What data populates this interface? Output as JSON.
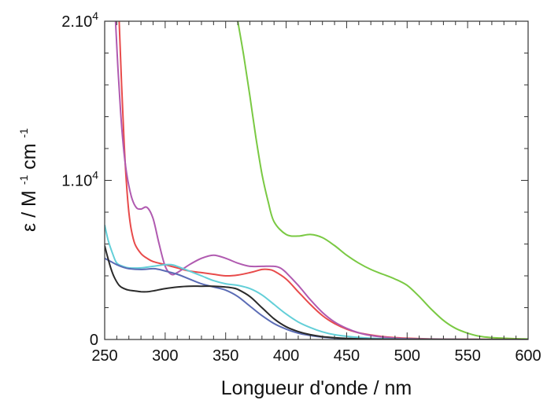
{
  "chart_data": {
    "type": "line",
    "title": "",
    "xlabel": "Longueur d'onde / nm",
    "ylabel": {
      "symbol": "ε",
      "text": "/ M",
      "exp1": "-1",
      "unit2": "cm",
      "exp2": "-1"
    },
    "xlim": [
      250,
      600
    ],
    "ylim": [
      0,
      20000
    ],
    "xticks": [
      250,
      300,
      350,
      400,
      450,
      500,
      550,
      600
    ],
    "yticks": [
      {
        "value": 0,
        "base": "0",
        "exp": ""
      },
      {
        "value": 10000,
        "base": "1.10",
        "exp": "4"
      },
      {
        "value": 20000,
        "base": "2.10",
        "exp": "4"
      }
    ],
    "grid": false,
    "legend": "none",
    "series": [
      {
        "color": "#7ac943",
        "x": [
          360,
          365,
          370,
          375,
          380,
          385,
          390,
          400,
          410,
          420,
          430,
          440,
          450,
          460,
          470,
          480,
          490,
          500,
          510,
          520,
          530,
          540,
          550,
          560,
          570,
          580,
          590,
          600
        ],
        "y": [
          20000,
          17800,
          15300,
          12700,
          10400,
          8700,
          7400,
          6600,
          6500,
          6600,
          6400,
          5900,
          5300,
          4800,
          4400,
          4100,
          3800,
          3400,
          2700,
          1900,
          1200,
          700,
          400,
          200,
          120,
          80,
          50,
          30
        ]
      },
      {
        "color": "#e84b4b",
        "x": [
          262,
          264,
          266,
          268,
          270,
          272,
          275,
          280,
          285,
          290,
          300,
          310,
          320,
          330,
          340,
          350,
          360,
          370,
          380,
          385,
          390,
          400,
          410,
          420,
          430,
          440,
          450,
          460,
          470,
          480,
          490,
          500,
          520,
          540,
          560,
          580,
          600
        ],
        "y": [
          20000,
          16000,
          12500,
          9800,
          8000,
          6900,
          6000,
          5400,
          5100,
          4900,
          4700,
          4500,
          4300,
          4200,
          4100,
          4000,
          4050,
          4200,
          4400,
          4400,
          4300,
          3800,
          3000,
          2200,
          1500,
          1000,
          650,
          420,
          280,
          180,
          120,
          80,
          40,
          20,
          10,
          5,
          0
        ]
      },
      {
        "color": "#b05ab0",
        "x": [
          259,
          261,
          263,
          265,
          268,
          272,
          276,
          280,
          285,
          290,
          295,
          300,
          305,
          310,
          320,
          330,
          340,
          350,
          360,
          370,
          380,
          390,
          395,
          400,
          410,
          420,
          430,
          440,
          450,
          460,
          470,
          480,
          490,
          500,
          520,
          540,
          560,
          580,
          600
        ],
        "y": [
          20000,
          17000,
          14500,
          12500,
          10500,
          9000,
          8300,
          8200,
          8300,
          7600,
          6000,
          4600,
          4100,
          4200,
          4700,
          5100,
          5300,
          5100,
          4800,
          4600,
          4600,
          4600,
          4500,
          4200,
          3400,
          2500,
          1700,
          1100,
          700,
          420,
          250,
          150,
          90,
          50,
          20,
          10,
          5,
          0,
          0
        ]
      },
      {
        "color": "#63cfd8",
        "x": [
          250,
          253,
          257,
          260,
          265,
          270,
          280,
          290,
          300,
          305,
          310,
          320,
          330,
          340,
          350,
          360,
          370,
          380,
          390,
          400,
          410,
          420,
          430,
          440,
          450,
          460,
          470,
          480,
          500,
          520,
          540,
          560,
          580,
          600
        ],
        "y": [
          7200,
          6200,
          5300,
          4800,
          4600,
          4500,
          4500,
          4600,
          4700,
          4700,
          4600,
          4300,
          4000,
          3700,
          3500,
          3400,
          3200,
          2800,
          2200,
          1600,
          1100,
          750,
          480,
          300,
          200,
          130,
          80,
          50,
          20,
          10,
          5,
          0,
          0,
          0
        ]
      },
      {
        "color": "#5b6cb5",
        "x": [
          250,
          255,
          260,
          265,
          270,
          280,
          290,
          295,
          300,
          310,
          320,
          330,
          340,
          350,
          360,
          370,
          380,
          390,
          400,
          410,
          420,
          430,
          440,
          450,
          460,
          480,
          500,
          520,
          540,
          560,
          580,
          600
        ],
        "y": [
          5100,
          4900,
          4700,
          4550,
          4450,
          4400,
          4450,
          4400,
          4300,
          4100,
          3800,
          3500,
          3300,
          3100,
          2700,
          2100,
          1500,
          1000,
          650,
          400,
          250,
          150,
          90,
          60,
          40,
          20,
          10,
          5,
          0,
          0,
          0,
          0
        ]
      },
      {
        "color": "#2a2a2a",
        "x": [
          250,
          252,
          255,
          258,
          262,
          266,
          270,
          275,
          280,
          285,
          290,
          300,
          310,
          320,
          330,
          340,
          350,
          355,
          360,
          370,
          380,
          390,
          400,
          410,
          420,
          430,
          440,
          450,
          460,
          480,
          500,
          520,
          560,
          600
        ],
        "y": [
          5900,
          5300,
          4500,
          3900,
          3400,
          3200,
          3100,
          3050,
          3000,
          3000,
          3050,
          3200,
          3300,
          3350,
          3350,
          3350,
          3300,
          3250,
          3150,
          2700,
          2000,
          1300,
          800,
          500,
          300,
          180,
          110,
          70,
          40,
          15,
          5,
          0,
          0,
          0
        ]
      }
    ]
  }
}
